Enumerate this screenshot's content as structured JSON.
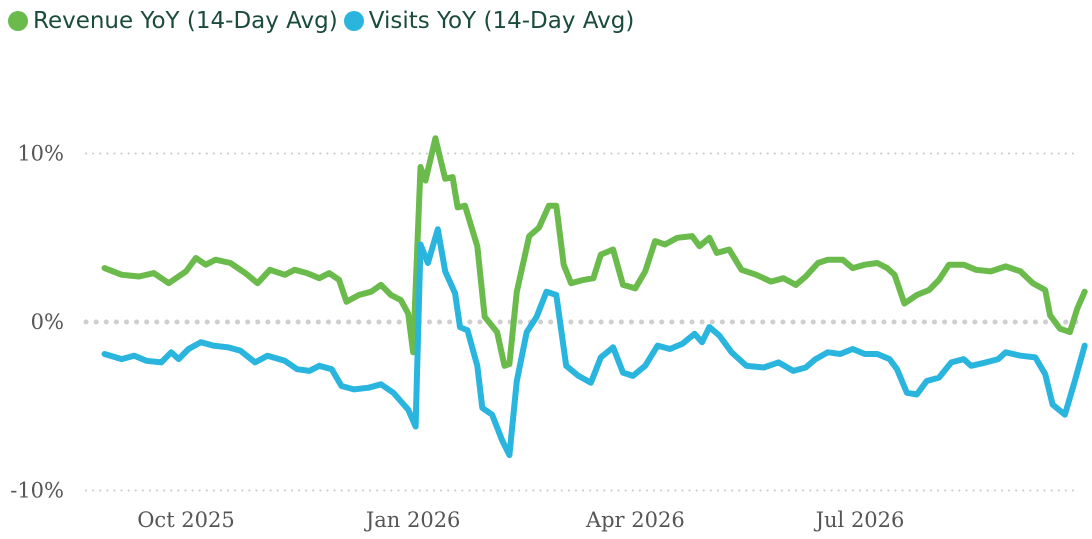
{
  "chart_data": {
    "type": "line",
    "title": "",
    "xlabel": "",
    "ylabel": "",
    "ylim": [
      -10,
      12
    ],
    "y_ticks": [
      {
        "value": 10,
        "label": "10%"
      },
      {
        "value": 0,
        "label": "0%"
      },
      {
        "value": -10,
        "label": "-10%"
      }
    ],
    "x_ticks": [
      {
        "date": "2025-10-01",
        "label": "Oct 2025"
      },
      {
        "date": "2026-01-01",
        "label": "Jan 2026"
      },
      {
        "date": "2026-04-01",
        "label": "Apr 2026"
      },
      {
        "date": "2026-07-01",
        "label": "Jul 2026"
      }
    ],
    "grid": "horizontal dotted",
    "legend_position": "top-left",
    "series": [
      {
        "name": "Revenue YoY (14-Day Avg)",
        "color": "#6abb4b",
        "points": [
          [
            "2025-08-29",
            3.2
          ],
          [
            "2025-09-05",
            2.8
          ],
          [
            "2025-09-12",
            2.7
          ],
          [
            "2025-09-18",
            2.9
          ],
          [
            "2025-09-24",
            2.3
          ],
          [
            "2025-10-01",
            3.0
          ],
          [
            "2025-10-05",
            3.8
          ],
          [
            "2025-10-09",
            3.4
          ],
          [
            "2025-10-13",
            3.7
          ],
          [
            "2025-10-19",
            3.5
          ],
          [
            "2025-10-25",
            2.9
          ],
          [
            "2025-10-30",
            2.3
          ],
          [
            "2025-11-04",
            3.1
          ],
          [
            "2025-11-10",
            2.8
          ],
          [
            "2025-11-14",
            3.1
          ],
          [
            "2025-11-19",
            2.9
          ],
          [
            "2025-11-24",
            2.6
          ],
          [
            "2025-11-28",
            2.9
          ],
          [
            "2025-12-02",
            2.5
          ],
          [
            "2025-12-05",
            1.2
          ],
          [
            "2025-12-10",
            1.6
          ],
          [
            "2025-12-15",
            1.8
          ],
          [
            "2025-12-19",
            2.2
          ],
          [
            "2025-12-23",
            1.6
          ],
          [
            "2025-12-27",
            1.3
          ],
          [
            "2025-12-30",
            0.5
          ],
          [
            "2026-01-01",
            -1.8
          ],
          [
            "2026-01-04",
            9.2
          ],
          [
            "2026-01-06",
            8.4
          ],
          [
            "2026-01-10",
            10.9
          ],
          [
            "2026-01-14",
            8.5
          ],
          [
            "2026-01-17",
            8.6
          ],
          [
            "2026-01-19",
            6.8
          ],
          [
            "2026-01-22",
            6.9
          ],
          [
            "2026-01-27",
            4.5
          ],
          [
            "2026-01-30",
            0.3
          ],
          [
            "2026-02-04",
            -0.6
          ],
          [
            "2026-02-07",
            -2.6
          ],
          [
            "2026-02-09",
            -2.5
          ],
          [
            "2026-02-12",
            1.8
          ],
          [
            "2026-02-17",
            5.1
          ],
          [
            "2026-02-21",
            5.6
          ],
          [
            "2026-02-25",
            6.9
          ],
          [
            "2026-02-28",
            6.9
          ],
          [
            "2026-03-03",
            3.4
          ],
          [
            "2026-03-06",
            2.3
          ],
          [
            "2026-03-11",
            2.5
          ],
          [
            "2026-03-15",
            2.6
          ],
          [
            "2026-03-18",
            4.0
          ],
          [
            "2026-03-23",
            4.3
          ],
          [
            "2026-03-27",
            2.2
          ],
          [
            "2026-04-01",
            2.0
          ],
          [
            "2026-04-05",
            3.0
          ],
          [
            "2026-04-09",
            4.8
          ],
          [
            "2026-04-13",
            4.6
          ],
          [
            "2026-04-18",
            5.0
          ],
          [
            "2026-04-24",
            5.1
          ],
          [
            "2026-04-27",
            4.5
          ],
          [
            "2026-05-01",
            5.0
          ],
          [
            "2026-05-04",
            4.1
          ],
          [
            "2026-05-09",
            4.3
          ],
          [
            "2026-05-14",
            3.1
          ],
          [
            "2026-05-20",
            2.8
          ],
          [
            "2026-05-26",
            2.4
          ],
          [
            "2026-05-31",
            2.6
          ],
          [
            "2026-06-05",
            2.2
          ],
          [
            "2026-06-09",
            2.7
          ],
          [
            "2026-06-14",
            3.5
          ],
          [
            "2026-06-18",
            3.7
          ],
          [
            "2026-06-24",
            3.7
          ],
          [
            "2026-06-28",
            3.2
          ],
          [
            "2026-07-03",
            3.4
          ],
          [
            "2026-07-08",
            3.5
          ],
          [
            "2026-07-12",
            3.2
          ],
          [
            "2026-07-15",
            2.8
          ],
          [
            "2026-07-19",
            1.1
          ],
          [
            "2026-07-24",
            1.6
          ],
          [
            "2026-07-29",
            1.9
          ],
          [
            "2026-08-02",
            2.5
          ],
          [
            "2026-08-06",
            3.4
          ],
          [
            "2026-08-12",
            3.4
          ],
          [
            "2026-08-17",
            3.1
          ],
          [
            "2026-08-23",
            3.0
          ],
          [
            "2026-08-29",
            3.3
          ],
          [
            "2026-09-04",
            3.0
          ],
          [
            "2026-09-09",
            2.3
          ],
          [
            "2026-09-14",
            1.9
          ],
          [
            "2026-09-16",
            0.4
          ],
          [
            "2026-09-20",
            -0.4
          ],
          [
            "2026-09-24",
            -0.6
          ],
          [
            "2026-09-27",
            0.8
          ],
          [
            "2026-09-30",
            1.8
          ]
        ]
      },
      {
        "name": "Visits YoY (14-Day Avg)",
        "color": "#2ab5df",
        "points": [
          [
            "2025-08-29",
            -1.9
          ],
          [
            "2025-09-05",
            -2.2
          ],
          [
            "2025-09-10",
            -2.0
          ],
          [
            "2025-09-15",
            -2.3
          ],
          [
            "2025-09-21",
            -2.4
          ],
          [
            "2025-09-25",
            -1.8
          ],
          [
            "2025-09-28",
            -2.2
          ],
          [
            "2025-10-02",
            -1.6
          ],
          [
            "2025-10-07",
            -1.2
          ],
          [
            "2025-10-12",
            -1.4
          ],
          [
            "2025-10-18",
            -1.5
          ],
          [
            "2025-10-23",
            -1.7
          ],
          [
            "2025-10-29",
            -2.4
          ],
          [
            "2025-11-03",
            -2.0
          ],
          [
            "2025-11-10",
            -2.3
          ],
          [
            "2025-11-15",
            -2.8
          ],
          [
            "2025-11-20",
            -2.9
          ],
          [
            "2025-11-24",
            -2.6
          ],
          [
            "2025-11-29",
            -2.8
          ],
          [
            "2025-12-03",
            -3.8
          ],
          [
            "2025-12-08",
            -4.0
          ],
          [
            "2025-12-14",
            -3.9
          ],
          [
            "2025-12-19",
            -3.7
          ],
          [
            "2025-12-24",
            -4.2
          ],
          [
            "2025-12-30",
            -5.2
          ],
          [
            "2026-01-02",
            -6.2
          ],
          [
            "2026-01-04",
            4.6
          ],
          [
            "2026-01-07",
            3.5
          ],
          [
            "2026-01-11",
            5.5
          ],
          [
            "2026-01-14",
            3.0
          ],
          [
            "2026-01-18",
            1.7
          ],
          [
            "2026-01-20",
            -0.3
          ],
          [
            "2026-01-23",
            -0.5
          ],
          [
            "2026-01-27",
            -2.6
          ],
          [
            "2026-01-29",
            -5.1
          ],
          [
            "2026-02-02",
            -5.5
          ],
          [
            "2026-02-06",
            -7.0
          ],
          [
            "2026-02-09",
            -7.9
          ],
          [
            "2026-02-12",
            -3.5
          ],
          [
            "2026-02-16",
            -0.6
          ],
          [
            "2026-02-20",
            0.3
          ],
          [
            "2026-02-24",
            1.8
          ],
          [
            "2026-02-28",
            1.6
          ],
          [
            "2026-03-04",
            -2.6
          ],
          [
            "2026-03-09",
            -3.2
          ],
          [
            "2026-03-14",
            -3.6
          ],
          [
            "2026-03-18",
            -2.1
          ],
          [
            "2026-03-23",
            -1.5
          ],
          [
            "2026-03-27",
            -3.0
          ],
          [
            "2026-03-31",
            -3.2
          ],
          [
            "2026-04-05",
            -2.6
          ],
          [
            "2026-04-10",
            -1.4
          ],
          [
            "2026-04-15",
            -1.6
          ],
          [
            "2026-04-20",
            -1.3
          ],
          [
            "2026-04-25",
            -0.7
          ],
          [
            "2026-04-28",
            -1.2
          ],
          [
            "2026-05-01",
            -0.3
          ],
          [
            "2026-05-05",
            -0.8
          ],
          [
            "2026-05-10",
            -1.8
          ],
          [
            "2026-05-16",
            -2.6
          ],
          [
            "2026-05-23",
            -2.7
          ],
          [
            "2026-05-29",
            -2.4
          ],
          [
            "2026-06-04",
            -2.9
          ],
          [
            "2026-06-09",
            -2.7
          ],
          [
            "2026-06-13",
            -2.2
          ],
          [
            "2026-06-18",
            -1.8
          ],
          [
            "2026-06-23",
            -1.9
          ],
          [
            "2026-06-28",
            -1.6
          ],
          [
            "2026-07-03",
            -1.9
          ],
          [
            "2026-07-08",
            -1.9
          ],
          [
            "2026-07-13",
            -2.2
          ],
          [
            "2026-07-16",
            -2.8
          ],
          [
            "2026-07-20",
            -4.2
          ],
          [
            "2026-07-24",
            -4.3
          ],
          [
            "2026-07-28",
            -3.5
          ],
          [
            "2026-08-02",
            -3.3
          ],
          [
            "2026-08-07",
            -2.4
          ],
          [
            "2026-08-12",
            -2.2
          ],
          [
            "2026-08-15",
            -2.6
          ],
          [
            "2026-08-21",
            -2.4
          ],
          [
            "2026-08-26",
            -2.2
          ],
          [
            "2026-08-29",
            -1.8
          ],
          [
            "2026-09-04",
            -2.0
          ],
          [
            "2026-09-10",
            -2.1
          ],
          [
            "2026-09-14",
            -3.1
          ],
          [
            "2026-09-17",
            -4.9
          ],
          [
            "2026-09-22",
            -5.5
          ],
          [
            "2026-09-26",
            -3.5
          ],
          [
            "2026-09-30",
            -1.4
          ]
        ]
      }
    ]
  }
}
